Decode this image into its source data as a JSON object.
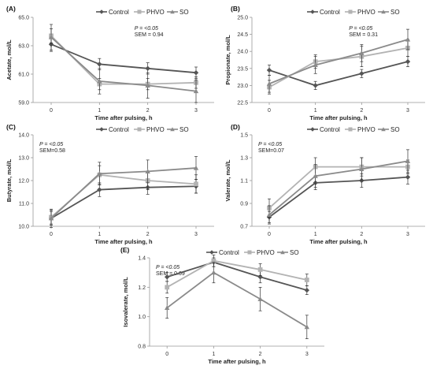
{
  "figure": {
    "title": ""
  },
  "legend_markers": [
    "diamond",
    "square",
    "triangle"
  ],
  "chart_data": [
    {
      "type": "line",
      "panel": "(A)",
      "title": "",
      "xlabel": "Time after pulsing, h",
      "ylabel": "Acetate, mol/L",
      "x": [
        0,
        1,
        2,
        3
      ],
      "ylim": [
        59.0,
        65.0
      ],
      "yticks": [
        "59.0",
        "61.0",
        "63.0",
        "65.0"
      ],
      "stat_p": "P = <0.05",
      "stat_sem": "SEM = 0.94",
      "legend_position": "top-right",
      "grid": false,
      "series": [
        {
          "name": "Control",
          "color": "#555555",
          "marker": "diamond",
          "values": [
            63.1,
            61.7,
            61.4,
            61.1
          ],
          "errors": [
            0.5,
            0.4,
            0.4,
            0.4
          ]
        },
        {
          "name": "PHVO",
          "color": "#b3b3b3",
          "marker": "square",
          "values": [
            63.7,
            60.3,
            60.3,
            60.4
          ],
          "errors": [
            0.5,
            0.4,
            0.4,
            0.4
          ]
        },
        {
          "name": "SO",
          "color": "#8a8a8a",
          "marker": "triangle",
          "values": [
            63.6,
            60.5,
            60.2,
            59.8
          ],
          "errors": [
            0.9,
            0.9,
            0.9,
            0.8
          ]
        }
      ]
    },
    {
      "type": "line",
      "panel": "(B)",
      "title": "",
      "xlabel": "Time after pulsing, h",
      "ylabel": "Propionate, mol/L",
      "x": [
        0,
        1,
        2,
        3
      ],
      "ylim": [
        22.5,
        25.0
      ],
      "yticks": [
        "22.5",
        "23.0",
        "23.5",
        "24.0",
        "24.5",
        "25.0"
      ],
      "stat_p": "P = <0.05",
      "stat_sem": "SEM = 0.31",
      "legend_position": "top-right",
      "grid": false,
      "series": [
        {
          "name": "Control",
          "color": "#555555",
          "marker": "diamond",
          "values": [
            23.45,
            23.0,
            23.35,
            23.7
          ],
          "errors": [
            0.15,
            0.12,
            0.12,
            0.15
          ]
        },
        {
          "name": "PHVO",
          "color": "#b3b3b3",
          "marker": "square",
          "values": [
            22.95,
            23.7,
            23.85,
            24.1
          ],
          "errors": [
            0.2,
            0.2,
            0.3,
            0.25
          ]
        },
        {
          "name": "SO",
          "color": "#8a8a8a",
          "marker": "triangle",
          "values": [
            23.05,
            23.6,
            23.95,
            24.35
          ],
          "errors": [
            0.25,
            0.25,
            0.25,
            0.3
          ]
        }
      ]
    },
    {
      "type": "line",
      "panel": "(C)",
      "title": "",
      "xlabel": "Time after pulsing, h",
      "ylabel": "Butyrate, mol/L",
      "x": [
        0,
        1,
        2,
        3
      ],
      "ylim": [
        10.0,
        14.0
      ],
      "yticks": [
        "10.0",
        "11.0",
        "12.0",
        "13.0",
        "14.0"
      ],
      "stat_p": "P = <0.05",
      "stat_sem": "SEM=0.58",
      "legend_position": "top-right",
      "grid": false,
      "series": [
        {
          "name": "Control",
          "color": "#555555",
          "marker": "diamond",
          "values": [
            10.35,
            11.6,
            11.7,
            11.75
          ],
          "errors": [
            0.3,
            0.3,
            0.3,
            0.3
          ]
        },
        {
          "name": "PHVO",
          "color": "#b3b3b3",
          "marker": "square",
          "values": [
            10.4,
            12.25,
            12.0,
            11.85
          ],
          "errors": [
            0.3,
            0.4,
            0.4,
            0.4
          ]
        },
        {
          "name": "SO",
          "color": "#8a8a8a",
          "marker": "triangle",
          "values": [
            10.35,
            12.3,
            12.4,
            12.55
          ],
          "errors": [
            0.4,
            0.5,
            0.5,
            0.5
          ]
        }
      ]
    },
    {
      "type": "line",
      "panel": "(D)",
      "title": "",
      "xlabel": "Time after pulsing, h",
      "ylabel": "Valerate, mol/L",
      "x": [
        0,
        1,
        2,
        3
      ],
      "ylim": [
        0.7,
        1.5
      ],
      "yticks": [
        "0.7",
        "0.9",
        "1.1",
        "1.3",
        "1.5"
      ],
      "stat_p": "P = <0.05",
      "stat_sem": "SEM=0.07",
      "legend_position": "top-right",
      "grid": false,
      "series": [
        {
          "name": "Control",
          "color": "#555555",
          "marker": "diamond",
          "values": [
            0.78,
            1.08,
            1.1,
            1.13
          ],
          "errors": [
            0.05,
            0.06,
            0.06,
            0.06
          ]
        },
        {
          "name": "PHVO",
          "color": "#b3b3b3",
          "marker": "square",
          "values": [
            0.86,
            1.22,
            1.22,
            1.22
          ],
          "errors": [
            0.08,
            0.08,
            0.08,
            0.06
          ]
        },
        {
          "name": "SO",
          "color": "#8a8a8a",
          "marker": "triangle",
          "values": [
            0.8,
            1.14,
            1.2,
            1.27
          ],
          "errors": [
            0.08,
            0.1,
            0.1,
            0.1
          ]
        }
      ]
    },
    {
      "type": "line",
      "panel": "(E)",
      "title": "",
      "xlabel": "Time after pulsing, h",
      "ylabel": "Isovalerate, mol/L",
      "x": [
        0,
        1,
        2,
        3
      ],
      "ylim": [
        0.8,
        1.4
      ],
      "yticks": [
        "0.8",
        "1.0",
        "1.2",
        "1.4"
      ],
      "stat_p": "P = <0.05",
      "stat_sem": "SEM = 0.09",
      "legend_position": "top-right",
      "grid": false,
      "series": [
        {
          "name": "Control",
          "color": "#555555",
          "marker": "diamond",
          "values": [
            1.27,
            1.37,
            1.27,
            1.18
          ],
          "errors": [
            0.03,
            0.03,
            0.04,
            0.03
          ]
        },
        {
          "name": "PHVO",
          "color": "#b3b3b3",
          "marker": "square",
          "values": [
            1.2,
            1.38,
            1.32,
            1.25
          ],
          "errors": [
            0.04,
            0.04,
            0.04,
            0.04
          ]
        },
        {
          "name": "SO",
          "color": "#8a8a8a",
          "marker": "triangle",
          "values": [
            1.06,
            1.3,
            1.12,
            0.93
          ],
          "errors": [
            0.07,
            0.07,
            0.08,
            0.08
          ]
        }
      ]
    }
  ]
}
